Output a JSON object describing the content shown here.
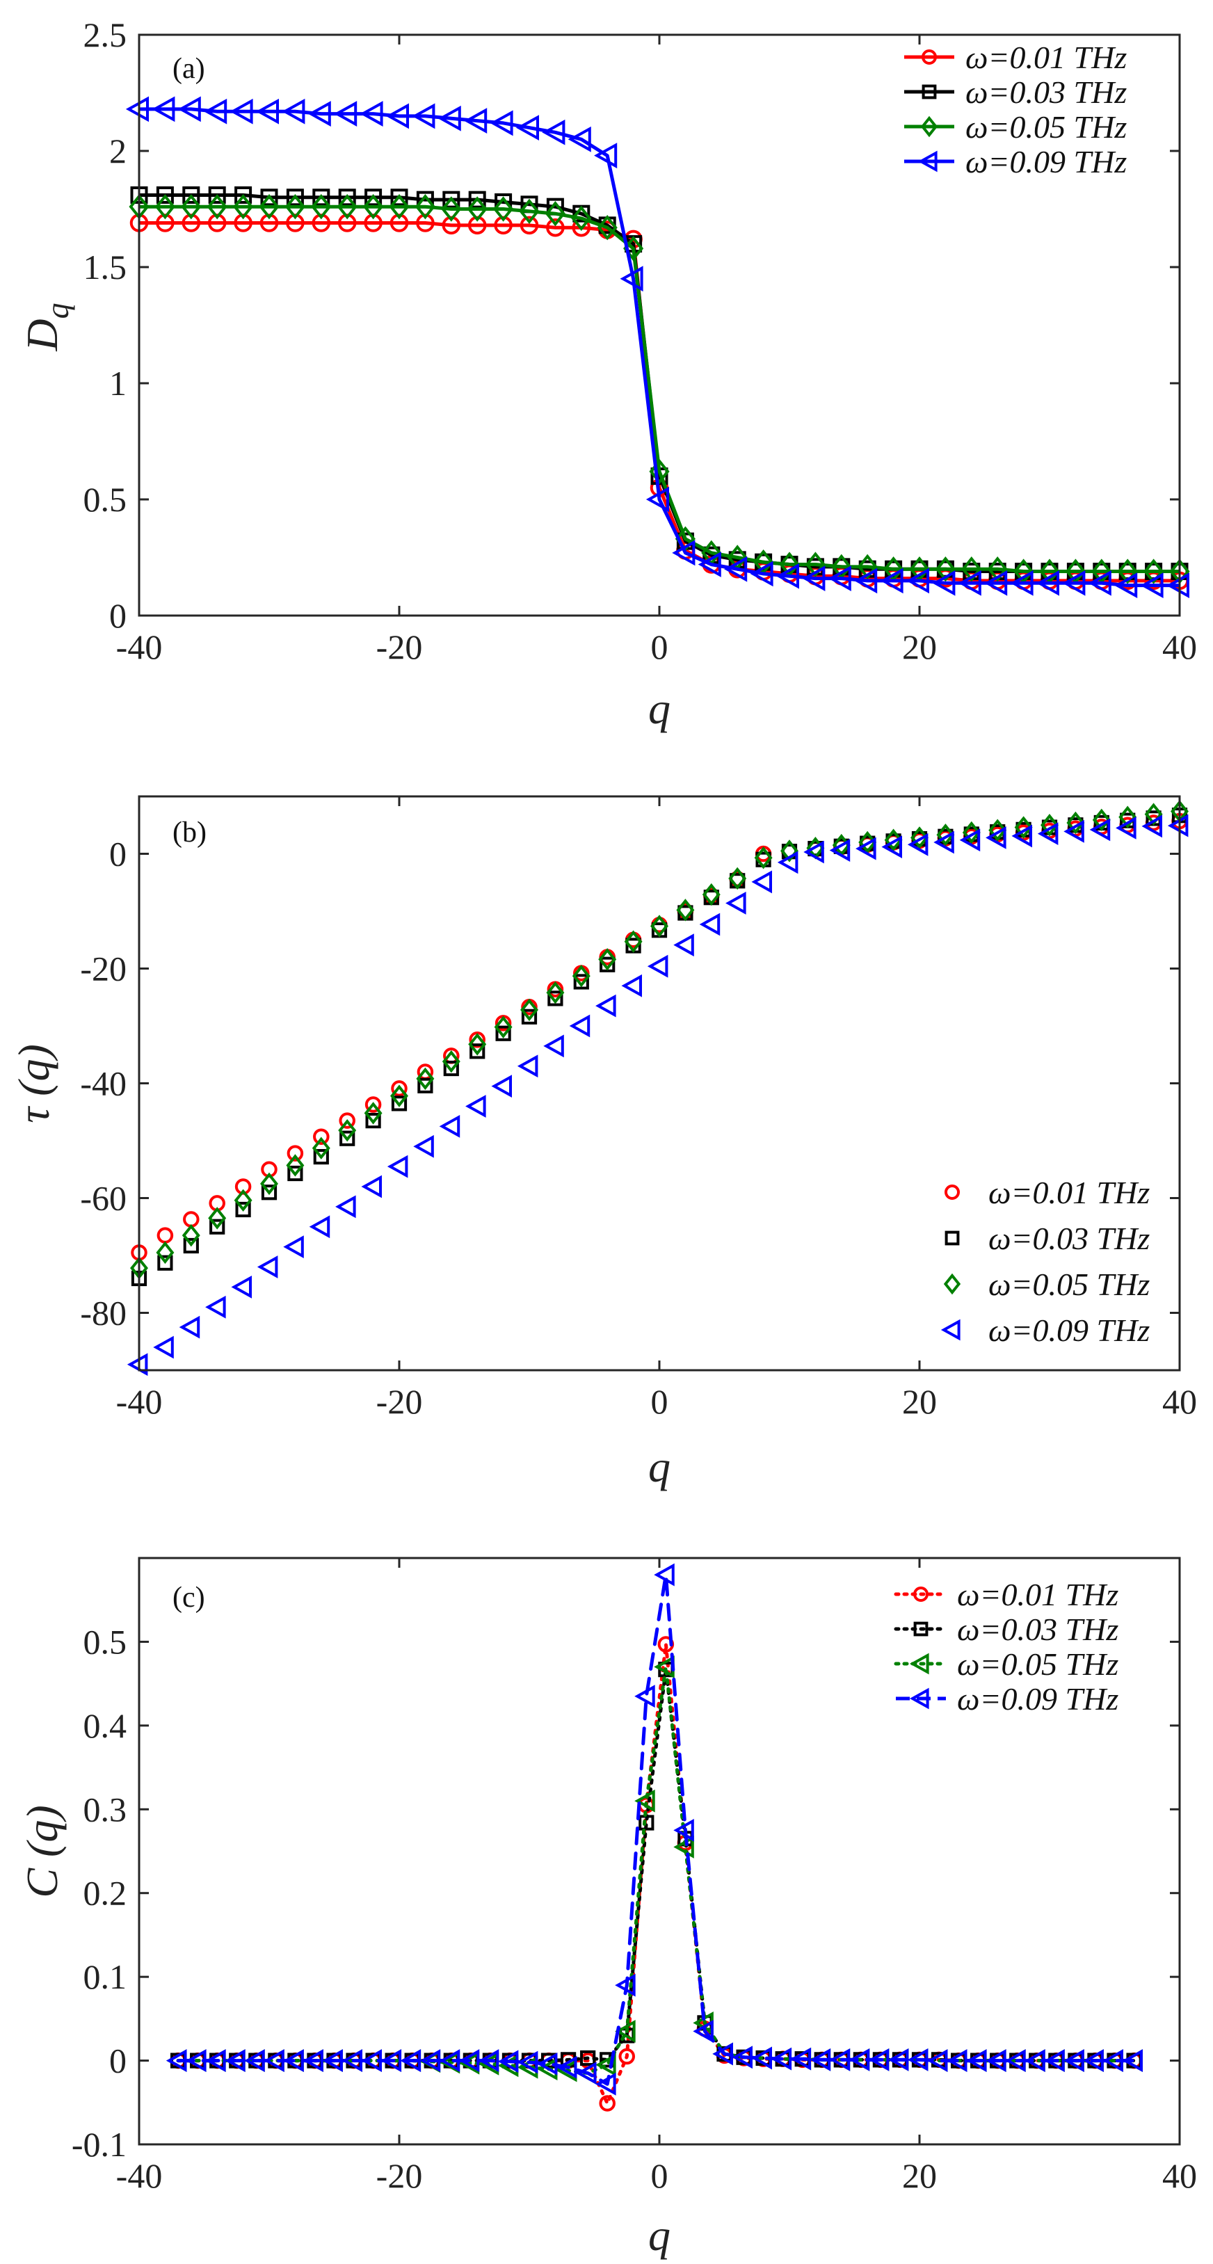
{
  "chart_data": [
    {
      "type": "line",
      "panel_label": "(a)",
      "xlabel": "q",
      "ylabel": "D",
      "ylabel_sub": "q",
      "xlim": [
        -40,
        40
      ],
      "ylim": [
        0,
        2.5
      ],
      "xticks": [
        -40,
        -20,
        0,
        20,
        40
      ],
      "xtick_labels": [
        "-40",
        "-20",
        "0",
        "20",
        "40"
      ],
      "yticks": [
        0,
        0.5,
        1,
        1.5,
        2,
        2.5
      ],
      "ytick_labels": [
        "0",
        "0.5",
        "1",
        "1.5",
        "2",
        "2.5"
      ],
      "legend_position": "top-right",
      "x": [
        -40,
        -38,
        -36,
        -34,
        -32,
        -30,
        -28,
        -26,
        -24,
        -22,
        -20,
        -18,
        -16,
        -14,
        -12,
        -10,
        -8,
        -6,
        -4,
        -2,
        0,
        2,
        4,
        6,
        8,
        10,
        12,
        14,
        16,
        18,
        20,
        22,
        24,
        26,
        28,
        30,
        32,
        34,
        36,
        38,
        40
      ],
      "series": [
        {
          "name": "ω=0.01 THz",
          "color": "#ff0000",
          "marker": "circle",
          "dash": "solid",
          "values": [
            1.69,
            1.69,
            1.69,
            1.69,
            1.69,
            1.69,
            1.69,
            1.69,
            1.69,
            1.69,
            1.69,
            1.69,
            1.68,
            1.68,
            1.68,
            1.68,
            1.67,
            1.67,
            1.66,
            1.62,
            0.55,
            0.28,
            0.22,
            0.2,
            0.19,
            0.18,
            0.17,
            0.17,
            0.16,
            0.16,
            0.16,
            0.16,
            0.15,
            0.15,
            0.15,
            0.15,
            0.15,
            0.15,
            0.15,
            0.15,
            0.15
          ]
        },
        {
          "name": "ω=0.03 THz",
          "color": "#000000",
          "marker": "square",
          "dash": "solid",
          "values": [
            1.81,
            1.81,
            1.81,
            1.81,
            1.81,
            1.8,
            1.8,
            1.8,
            1.8,
            1.8,
            1.8,
            1.79,
            1.79,
            1.79,
            1.78,
            1.77,
            1.76,
            1.73,
            1.68,
            1.6,
            0.6,
            0.32,
            0.26,
            0.24,
            0.23,
            0.22,
            0.21,
            0.21,
            0.2,
            0.2,
            0.2,
            0.2,
            0.19,
            0.19,
            0.19,
            0.19,
            0.19,
            0.19,
            0.19,
            0.19,
            0.19
          ]
        },
        {
          "name": "ω=0.05 THz",
          "color": "#008000",
          "marker": "diamond",
          "dash": "solid",
          "values": [
            1.76,
            1.76,
            1.76,
            1.76,
            1.76,
            1.76,
            1.76,
            1.76,
            1.76,
            1.76,
            1.76,
            1.76,
            1.75,
            1.75,
            1.75,
            1.74,
            1.73,
            1.71,
            1.67,
            1.58,
            0.62,
            0.33,
            0.27,
            0.25,
            0.23,
            0.22,
            0.22,
            0.21,
            0.21,
            0.2,
            0.2,
            0.2,
            0.2,
            0.2,
            0.19,
            0.19,
            0.19,
            0.19,
            0.19,
            0.19,
            0.19
          ]
        },
        {
          "name": "ω=0.09 THz",
          "color": "#0000ff",
          "marker": "triangle-left",
          "dash": "solid",
          "values": [
            2.18,
            2.18,
            2.18,
            2.17,
            2.17,
            2.17,
            2.17,
            2.16,
            2.16,
            2.16,
            2.15,
            2.15,
            2.14,
            2.13,
            2.12,
            2.1,
            2.08,
            2.05,
            1.98,
            1.45,
            0.5,
            0.27,
            0.22,
            0.2,
            0.18,
            0.17,
            0.16,
            0.16,
            0.15,
            0.15,
            0.15,
            0.14,
            0.14,
            0.14,
            0.14,
            0.14,
            0.14,
            0.14,
            0.13,
            0.13,
            0.13
          ]
        }
      ]
    },
    {
      "type": "scatter",
      "panel_label": "(b)",
      "xlabel": "q",
      "ylabel": "τ (q)",
      "xlim": [
        -40,
        40
      ],
      "ylim": [
        -90,
        10
      ],
      "xticks": [
        -40,
        -20,
        0,
        20,
        40
      ],
      "xtick_labels": [
        "-40",
        "-20",
        "0",
        "20",
        "40"
      ],
      "yticks": [
        0,
        -20,
        -40,
        -60,
        -80
      ],
      "ytick_labels": [
        "0",
        "-20",
        "-40",
        "-60",
        "-80"
      ],
      "legend_position": "bottom-right",
      "x": [
        -40,
        -38,
        -36,
        -34,
        -32,
        -30,
        -28,
        -26,
        -24,
        -22,
        -20,
        -18,
        -16,
        -14,
        -12,
        -10,
        -8,
        -6,
        -4,
        -2,
        0,
        2,
        4,
        6,
        8,
        10,
        12,
        14,
        16,
        18,
        20,
        22,
        24,
        26,
        28,
        30,
        32,
        34,
        36,
        38,
        40
      ],
      "series": [
        {
          "name": "ω=0.01 THz",
          "color": "#ff0000",
          "marker": "circle",
          "dash": "none",
          "values": [
            -69.5,
            -66.5,
            -63.7,
            -60.9,
            -58.0,
            -55.0,
            -52.2,
            -49.3,
            -46.5,
            -43.7,
            -40.9,
            -38.0,
            -35.2,
            -32.4,
            -29.5,
            -26.7,
            -23.6,
            -20.8,
            -18.0,
            -15.0,
            -12.4,
            -10.0,
            -7.3,
            -4.4,
            0,
            0.4,
            0.8,
            1.2,
            1.6,
            2.0,
            2.3,
            2.7,
            3.0,
            3.4,
            3.7,
            4.0,
            4.4,
            4.7,
            5.0,
            5.4,
            5.7
          ]
        },
        {
          "name": "ω=0.03 THz",
          "color": "#000000",
          "marker": "square",
          "dash": "none",
          "values": [
            -74.0,
            -71.3,
            -68.3,
            -65.0,
            -62.0,
            -59.0,
            -55.7,
            -52.8,
            -49.6,
            -46.5,
            -43.5,
            -40.4,
            -37.4,
            -34.4,
            -31.3,
            -28.4,
            -25.2,
            -22.3,
            -19.3,
            -16.0,
            -13.3,
            -10.3,
            -7.6,
            -4.7,
            -1.0,
            0.4,
            0.9,
            1.3,
            1.8,
            2.2,
            2.6,
            3.0,
            3.4,
            3.8,
            4.2,
            4.6,
            5.0,
            5.4,
            5.8,
            6.2,
            6.7
          ]
        },
        {
          "name": "ω=0.05 THz",
          "color": "#008000",
          "marker": "diamond",
          "dash": "none",
          "values": [
            -72.2,
            -69.5,
            -66.5,
            -63.5,
            -60.4,
            -57.5,
            -54.3,
            -51.3,
            -48.2,
            -45.2,
            -42.2,
            -39.2,
            -36.2,
            -33.2,
            -30.2,
            -27.2,
            -24.2,
            -21.3,
            -18.4,
            -15.3,
            -12.6,
            -9.8,
            -7.1,
            -4.3,
            -0.7,
            0.5,
            1.0,
            1.5,
            2.0,
            2.4,
            2.8,
            3.3,
            3.7,
            4.1,
            4.6,
            5.0,
            5.4,
            5.9,
            6.4,
            6.9,
            7.4
          ]
        },
        {
          "name": "ω=0.09 THz",
          "color": "#0000ff",
          "marker": "triangle-left",
          "dash": "none",
          "values": [
            -89.0,
            -86.0,
            -82.5,
            -79.0,
            -75.5,
            -72.0,
            -68.5,
            -65.0,
            -61.5,
            -58.0,
            -54.5,
            -51.0,
            -47.5,
            -44.0,
            -40.5,
            -37.0,
            -33.5,
            -30.0,
            -26.5,
            -23.0,
            -19.6,
            -15.9,
            -12.3,
            -8.6,
            -4.9,
            -1.5,
            0.3,
            0.6,
            0.9,
            1.2,
            1.6,
            2.0,
            2.4,
            2.8,
            3.1,
            3.5,
            3.9,
            4.2,
            4.5,
            4.8,
            4.9
          ]
        }
      ]
    },
    {
      "type": "line",
      "panel_label": "(c)",
      "xlabel": "q",
      "ylabel": "C (q)",
      "xlim": [
        -40,
        40
      ],
      "ylim": [
        -0.1,
        0.6
      ],
      "xticks": [
        -40,
        -20,
        0,
        20,
        40
      ],
      "xtick_labels": [
        "-40",
        "-20",
        "0",
        "20",
        "40"
      ],
      "yticks": [
        -0.1,
        0,
        0.1,
        0.2,
        0.3,
        0.4,
        0.5
      ],
      "ytick_labels": [
        "-0.1",
        "0",
        "0.1",
        "0.2",
        "0.3",
        "0.4",
        "0.5"
      ],
      "legend_position": "top-right",
      "x": [
        -37,
        -35.5,
        -34,
        -32.5,
        -31,
        -29.5,
        -28,
        -26.5,
        -25,
        -23.5,
        -22,
        -20.5,
        -19,
        -17.5,
        -16,
        -14.5,
        -13,
        -11.5,
        -10,
        -8.5,
        -7,
        -5.5,
        -4,
        -2.5,
        -1,
        0.5,
        2,
        3.5,
        5,
        6.5,
        8,
        9.5,
        11,
        12.5,
        14,
        15.5,
        17,
        18.5,
        20,
        21.5,
        23,
        24.5,
        26,
        27.5,
        29,
        30.5,
        32,
        33.5,
        35,
        36.5
      ],
      "series": [
        {
          "name": "ω=0.01 THz",
          "color": "#ff0000",
          "marker": "circle",
          "dash": "dotted",
          "values": [
            0,
            0,
            0,
            0,
            0,
            0,
            0,
            0,
            0,
            0,
            0,
            0,
            0,
            0,
            0,
            0,
            0,
            0,
            0,
            0,
            0,
            0,
            -0.051,
            0.005,
            0.305,
            0.497,
            0.26,
            0.038,
            0.006,
            0.003,
            0.002,
            0.002,
            0.001,
            0.001,
            0.001,
            0.001,
            0.001,
            0.001,
            0.001,
            0.001,
            0,
            0,
            0,
            0,
            0,
            0,
            0,
            0,
            0,
            0
          ]
        },
        {
          "name": "ω=0.03 THz",
          "color": "#000000",
          "marker": "square",
          "dash": "dotted",
          "values": [
            0,
            0,
            0,
            0,
            0,
            0,
            0,
            0,
            0,
            0,
            0,
            0,
            0,
            0,
            0,
            0,
            0,
            0,
            0,
            0,
            0.001,
            0.003,
            0.001,
            0.03,
            0.284,
            0.467,
            0.265,
            0.045,
            0.008,
            0.004,
            0.003,
            0.002,
            0.002,
            0.001,
            0.001,
            0.001,
            0.001,
            0.001,
            0.001,
            0.001,
            0,
            0,
            0,
            0,
            0,
            0,
            0,
            0,
            0,
            0
          ]
        },
        {
          "name": "ω=0.05 THz",
          "color": "#008000",
          "marker": "triangle-left",
          "dash": "dotted",
          "values": [
            0,
            0,
            0,
            0,
            0,
            0,
            0,
            0,
            0,
            0,
            0,
            0,
            0,
            -0.001,
            -0.002,
            -0.003,
            -0.004,
            -0.006,
            -0.008,
            -0.01,
            -0.012,
            -0.015,
            -0.005,
            0.035,
            0.31,
            0.47,
            0.255,
            0.045,
            0.008,
            0.004,
            0.003,
            0.002,
            0.002,
            0.001,
            0.001,
            0.001,
            0.001,
            0.001,
            0.001,
            0,
            0,
            0,
            0,
            0,
            0,
            0,
            0,
            0,
            0,
            0
          ]
        },
        {
          "name": "ω=0.09 THz",
          "color": "#0000ff",
          "marker": "triangle-left",
          "dash": "dashed",
          "values": [
            0,
            0,
            0,
            0,
            0,
            0,
            0,
            0,
            0,
            0,
            0,
            0,
            0,
            0,
            0,
            0,
            0,
            -0.001,
            -0.002,
            -0.004,
            -0.008,
            -0.015,
            -0.028,
            0.09,
            0.435,
            0.58,
            0.275,
            0.035,
            0.008,
            0.004,
            0.003,
            0.002,
            0.002,
            0.001,
            0.001,
            0.001,
            0.001,
            0.001,
            0.001,
            0,
            0,
            0,
            0,
            0,
            0,
            0,
            0,
            0,
            0,
            0
          ]
        }
      ]
    }
  ]
}
